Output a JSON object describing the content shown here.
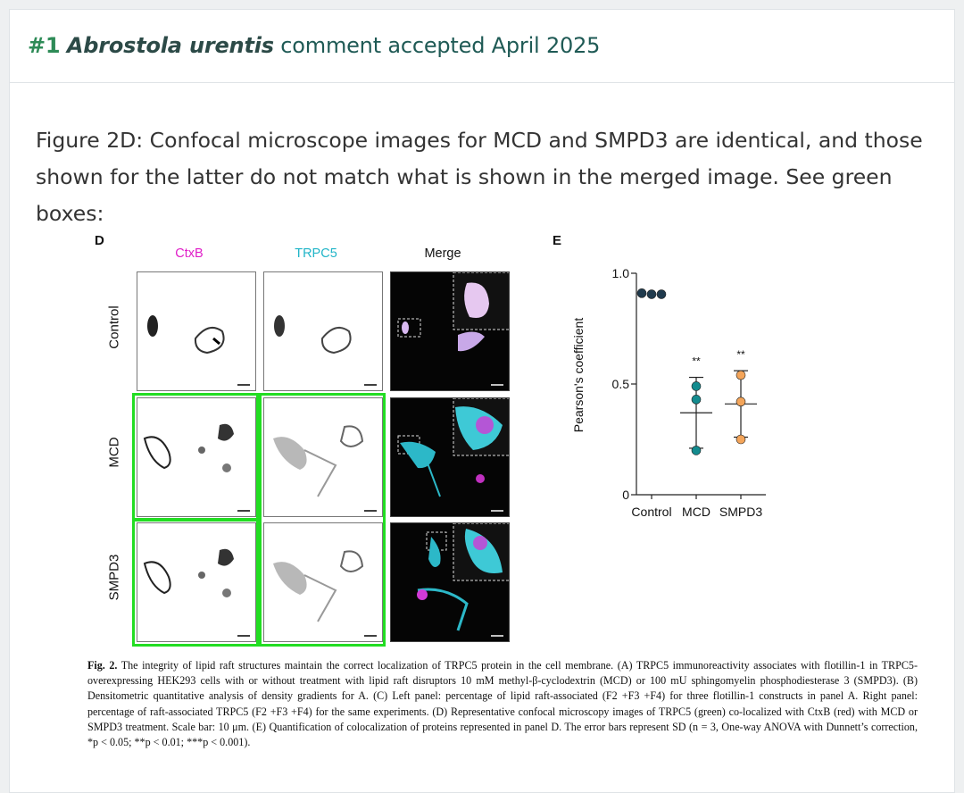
{
  "header": {
    "number": "#1",
    "species": "Abrostola urentis",
    "status": "comment accepted April 2025"
  },
  "comment_text": "Figure 2D: Confocal microscope images for MCD and SMPD3 are identical, and those shown for the latter do not match what is shown in the merged image. See green boxes:",
  "figure": {
    "panel_d_letter": "D",
    "panel_e_letter": "E",
    "columns": [
      {
        "label": "CtxB",
        "color": "#e01ec8"
      },
      {
        "label": "TRPC5",
        "color": "#21b5c8"
      },
      {
        "label": "Merge",
        "color": "#111111"
      }
    ],
    "rows": [
      "Control",
      "MCD",
      "SMPD3"
    ],
    "highlight_color": "#22dd22",
    "caption": {
      "lead": "Fig. 2.",
      "text": "The integrity of lipid raft structures maintain the correct localization of TRPC5 protein in the cell membrane. (A) TRPC5 immunoreactivity associates with flotillin-1 in TRPC5-overexpressing HEK293 cells with or without treatment with lipid raft disruptors 10 mM methyl-β-cyclodextrin (MCD) or 100 mU sphingomyelin phosphodiesterase 3 (SMPD3). (B) Densitometric quantitative analysis of density gradients for A. (C) Left panel: percentage of lipid raft-associated (F2 +F3 +F4) for three flotillin-1 constructs in panel A. Right panel: percentage of raft-associated TRPC5 (F2 +F3 +F4) for the same experiments. (D) Representative confocal microscopy images of TRPC5 (green) co-localized with CtxB (red) with MCD or SMPD3 treatment. Scale bar: 10 μm. (E) Quantification of colocalization of proteins represented in panel D. The error bars represent SD (n = 3, One-way ANOVA with Dunnett’s correction, *p < 0.05; **p < 0.01; ***p < 0.001)."
    }
  },
  "chart_data": {
    "type": "scatter",
    "ylabel": "Pearson's coefficient",
    "categories": [
      "Control",
      "MCD",
      "SMPD3"
    ],
    "yticks": [
      "0",
      "0.5",
      "1.0"
    ],
    "ylim": [
      0,
      1.0
    ],
    "points": [
      {
        "category": "Control",
        "values": [
          0.91,
          0.905,
          0.905
        ],
        "color": "#1f3a4d"
      },
      {
        "category": "MCD",
        "values": [
          0.49,
          0.43,
          0.2
        ],
        "color": "#138b8e"
      },
      {
        "category": "SMPD3",
        "values": [
          0.54,
          0.42,
          0.25
        ],
        "color": "#f4a55a"
      }
    ],
    "means": [
      null,
      0.37,
      0.41
    ],
    "sd_bounds": [
      null,
      [
        0.21,
        0.53
      ],
      [
        0.26,
        0.56
      ]
    ],
    "significance": [
      "",
      "**",
      "**"
    ]
  }
}
